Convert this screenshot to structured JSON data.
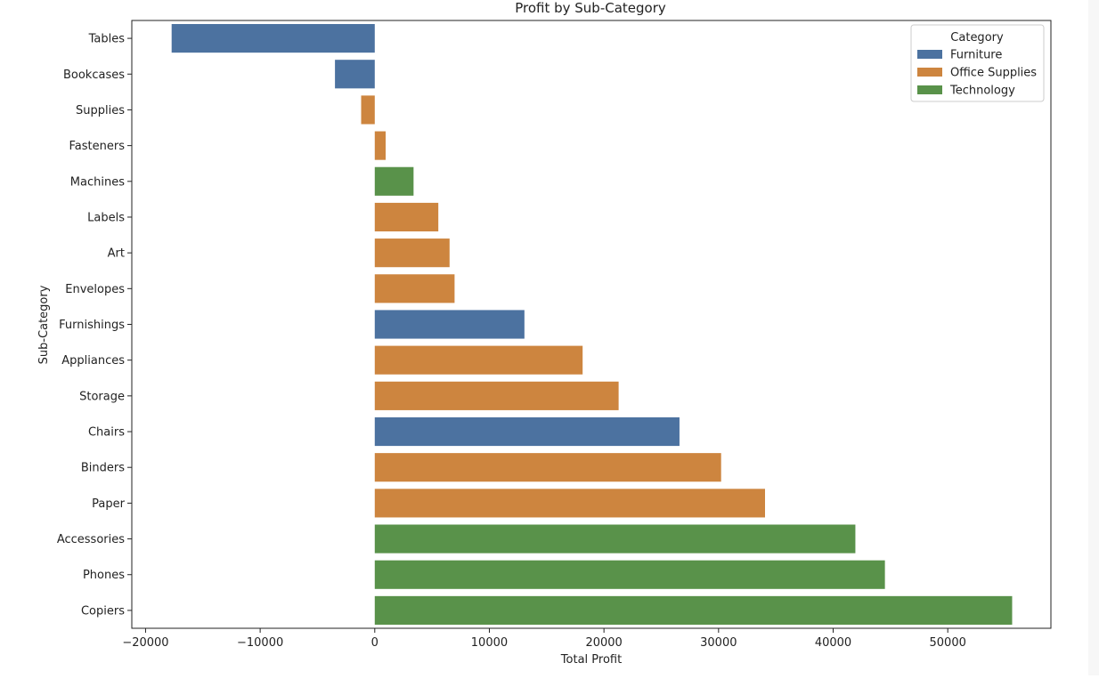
{
  "chart_data": {
    "type": "bar",
    "orientation": "horizontal",
    "title": "Profit by Sub-Category",
    "xlabel": "Total Profit",
    "ylabel": "Sub-Category",
    "xlim": [
      -21200,
      59000
    ],
    "xticks": [
      -20000,
      -10000,
      0,
      10000,
      20000,
      30000,
      40000,
      50000
    ],
    "xtick_labels": [
      "−20000",
      "−10000",
      "0",
      "10000",
      "20000",
      "30000",
      "40000",
      "50000"
    ],
    "grid": false,
    "legend": {
      "title": "Category",
      "placement": "top-right",
      "entries": [
        {
          "name": "Furniture",
          "color": "#4c72a0"
        },
        {
          "name": "Office Supplies",
          "color": "#cd853f"
        },
        {
          "name": "Technology",
          "color": "#59924a"
        }
      ]
    },
    "categories": [
      "Tables",
      "Bookcases",
      "Supplies",
      "Fasteners",
      "Machines",
      "Labels",
      "Art",
      "Envelopes",
      "Furnishings",
      "Appliances",
      "Storage",
      "Chairs",
      "Binders",
      "Paper",
      "Accessories",
      "Phones",
      "Copiers"
    ],
    "values": [
      -17725,
      -3473,
      -1189,
      950,
      3385,
      5546,
      6528,
      6964,
      13059,
      18138,
      21279,
      26590,
      30222,
      34054,
      41937,
      44516,
      55618
    ],
    "groups": [
      "Furniture",
      "Furniture",
      "Office Supplies",
      "Office Supplies",
      "Technology",
      "Office Supplies",
      "Office Supplies",
      "Office Supplies",
      "Furniture",
      "Office Supplies",
      "Office Supplies",
      "Furniture",
      "Office Supplies",
      "Office Supplies",
      "Technology",
      "Technology",
      "Technology"
    ]
  }
}
